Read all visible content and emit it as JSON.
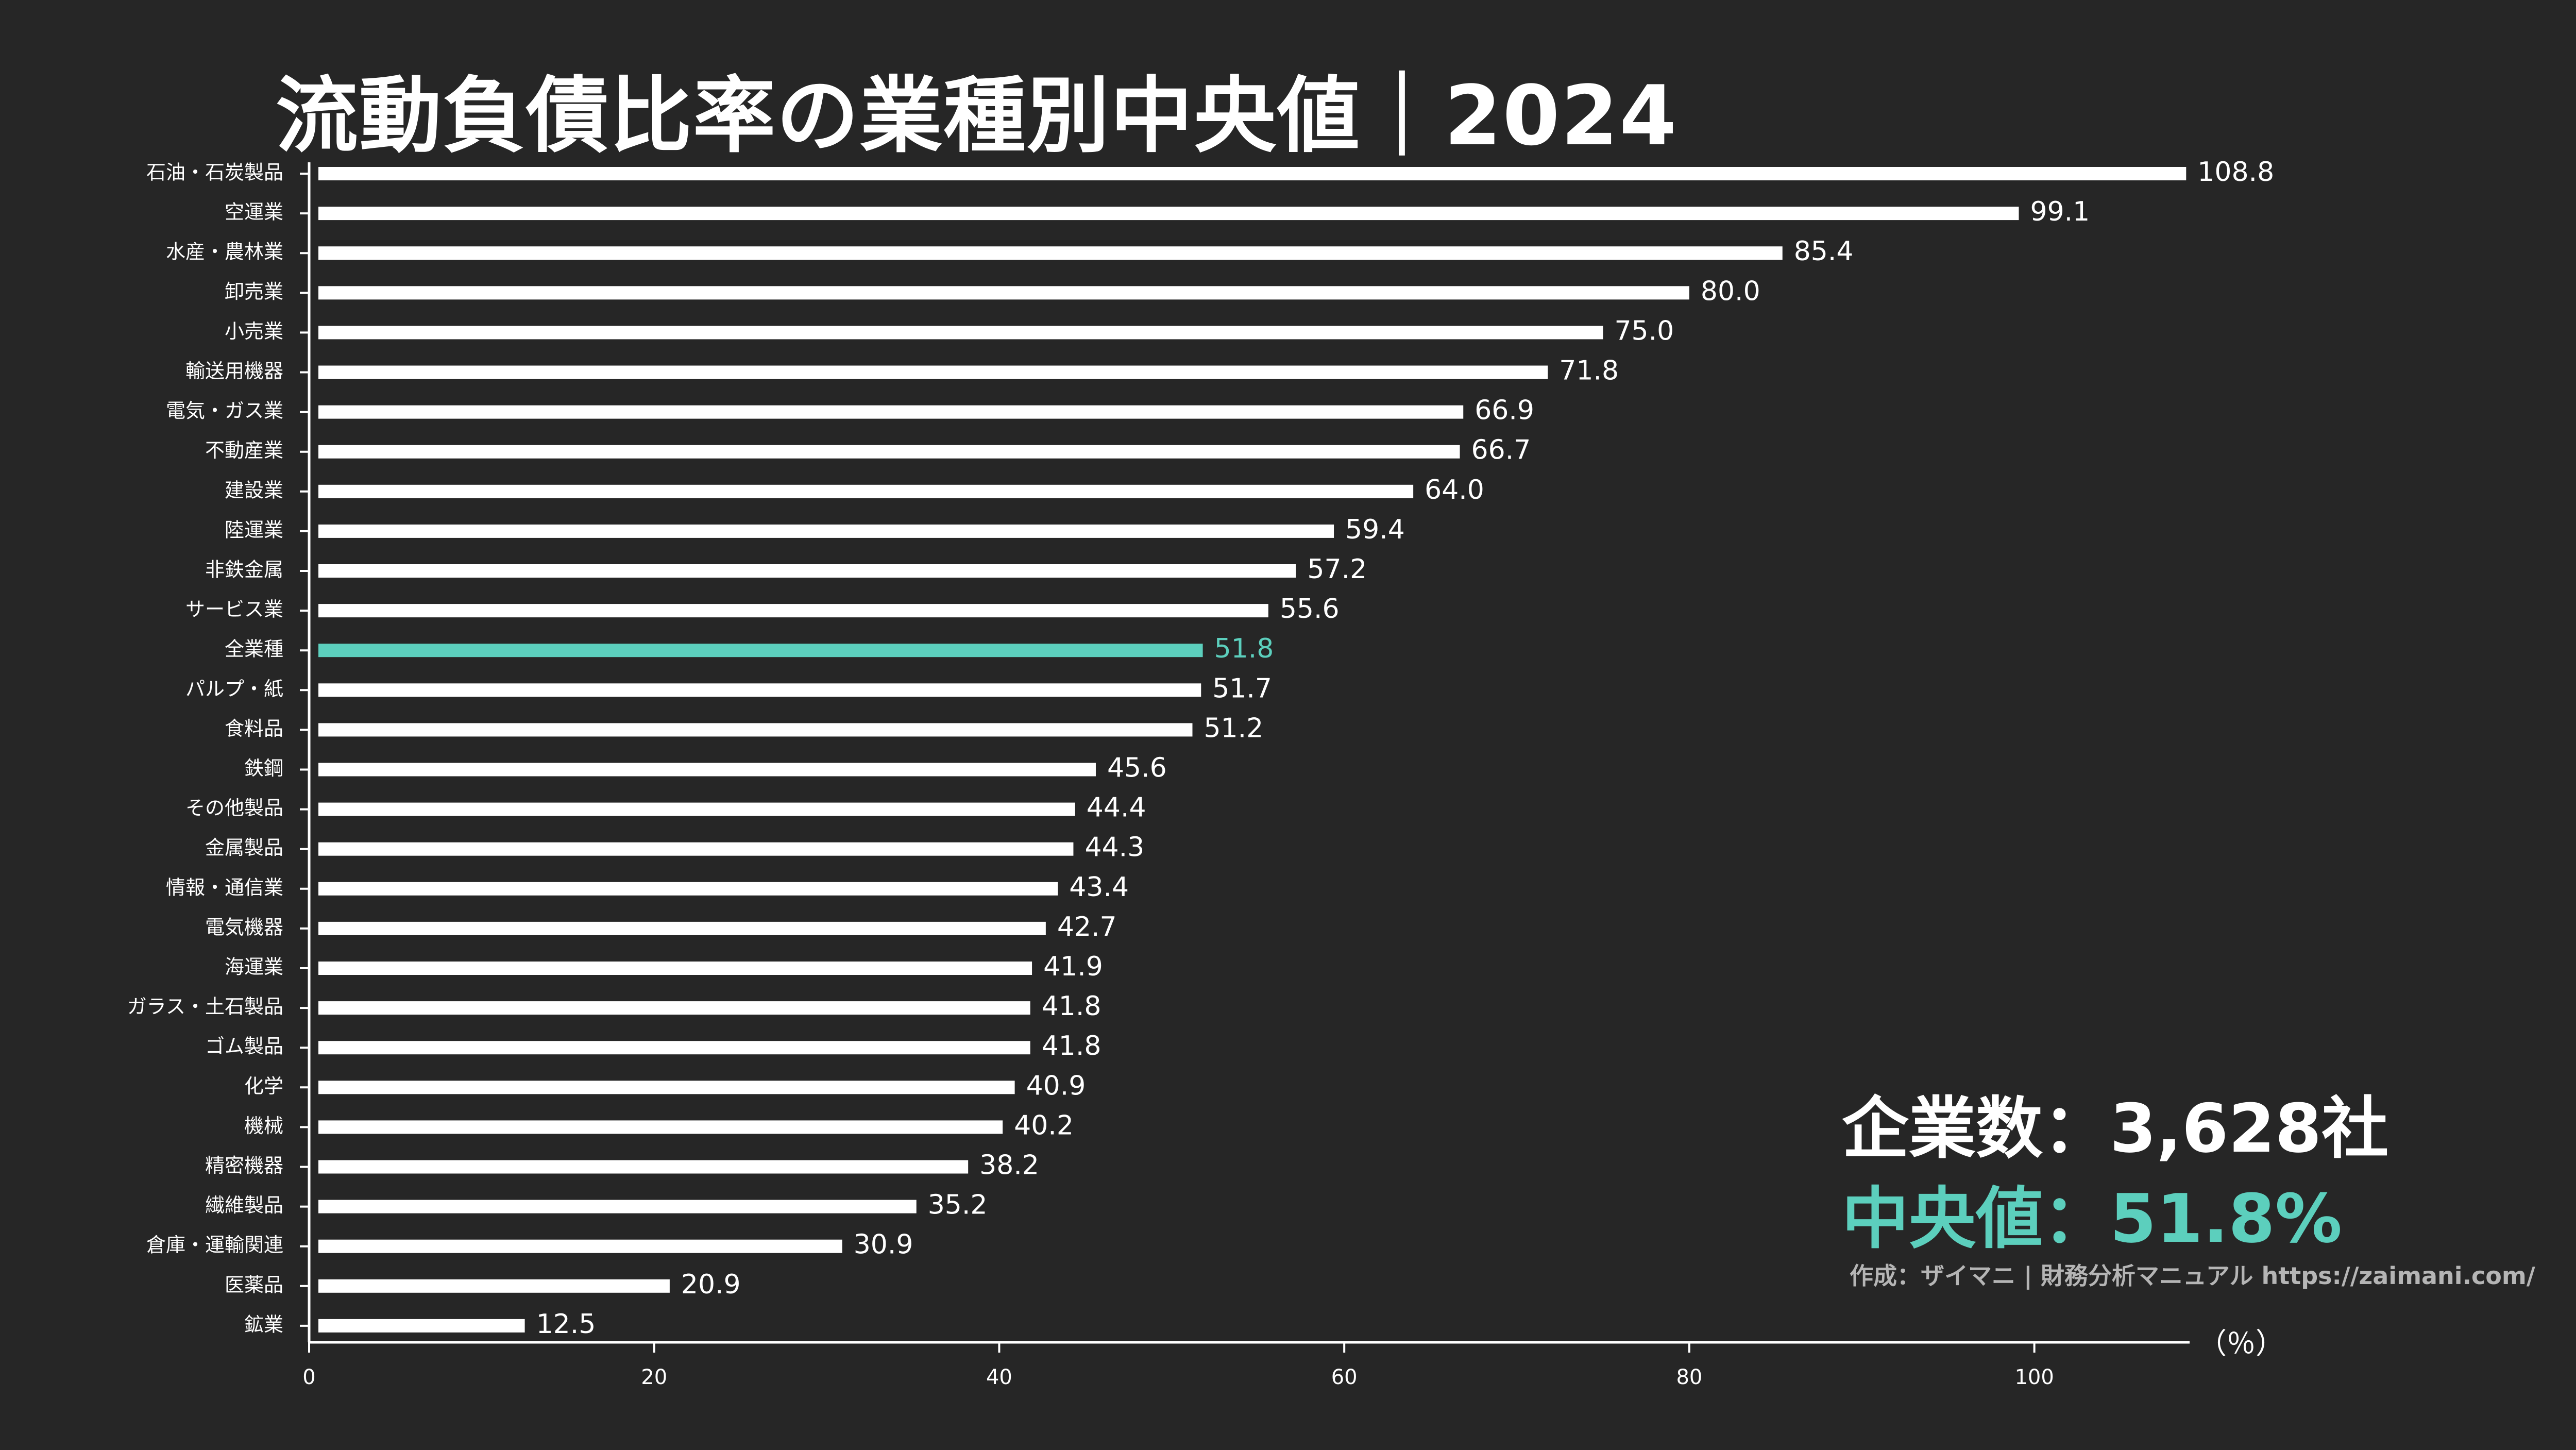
{
  "title": "流動負債比率の業種別中央値｜2024",
  "stats": {
    "companies": "企業数：3,628社",
    "median": "中央値：51.8%"
  },
  "credit": "作成：ザイマニ | 財務分析マニュアル https://zaimani.com/",
  "colors": {
    "bar": "#ffffff",
    "highlight": "#5ccfbd",
    "background": "#262626"
  },
  "chart_data": {
    "type": "bar",
    "orientation": "horizontal",
    "categories": [
      "石油・石炭製品",
      "空運業",
      "水産・農林業",
      "卸売業",
      "小売業",
      "輸送用機器",
      "電気・ガス業",
      "不動産業",
      "建設業",
      "陸運業",
      "非鉄金属",
      "サービス業",
      "全業種",
      "パルプ・紙",
      "食料品",
      "鉄鋼",
      "その他製品",
      "金属製品",
      "情報・通信業",
      "電気機器",
      "海運業",
      "ガラス・土石製品",
      "ゴム製品",
      "化学",
      "機械",
      "精密機器",
      "繊維製品",
      "倉庫・運輸関連",
      "医薬品",
      "鉱業"
    ],
    "values": [
      108.8,
      99.1,
      85.4,
      80.0,
      75.0,
      71.8,
      66.9,
      66.7,
      64.0,
      59.4,
      57.2,
      55.6,
      51.8,
      51.7,
      51.2,
      45.6,
      44.4,
      44.3,
      43.4,
      42.7,
      41.9,
      41.8,
      41.8,
      40.9,
      40.2,
      38.2,
      35.2,
      30.9,
      20.9,
      12.5
    ],
    "value_labels": [
      "108.8",
      "99.1",
      "85.4",
      "80.0",
      "75.0",
      "71.8",
      "66.9",
      "66.7",
      "64.0",
      "59.4",
      "57.2",
      "55.6",
      "51.8",
      "51.7",
      "51.2",
      "45.6",
      "44.4",
      "44.3",
      "43.4",
      "42.7",
      "41.9",
      "41.8",
      "41.8",
      "40.9",
      "40.2",
      "38.2",
      "35.2",
      "30.9",
      "20.9",
      "12.5"
    ],
    "highlight_category": "全業種",
    "xlim": [
      0,
      109
    ],
    "xticks": [
      0,
      20,
      40,
      60,
      80,
      100
    ],
    "xlabel": "（％）",
    "ylabel": "",
    "grid": false,
    "legend": "none"
  }
}
